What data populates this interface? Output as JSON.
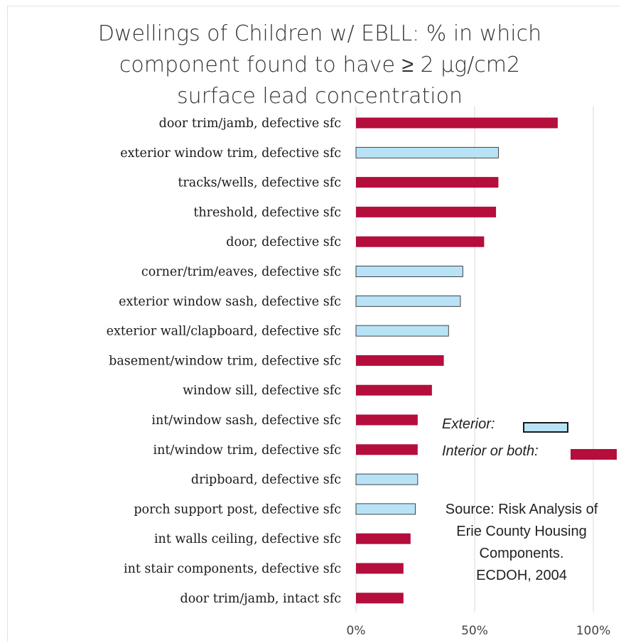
{
  "chart_data": {
    "type": "bar",
    "orientation": "horizontal",
    "title": "Dwellings of Children w/ EBLL: % in which component found to have ≥ 2 µg/cm2 surface lead concentration",
    "categories": [
      "door trim/jamb, defective sfc",
      "exterior window trim, defective sfc",
      "tracks/wells, defective sfc",
      "threshold, defective sfc",
      "door, defective sfc",
      "corner/trim/eaves, defective sfc",
      "exterior window sash, defective sfc",
      "exterior wall/clapboard, defective sfc",
      "basement/window trim, defective sfc",
      "window sill, defective sfc",
      "int/window sash, defective sfc",
      "int/window trim, defective sfc",
      "dripboard, defective sfc",
      "porch support post, defective sfc",
      "int walls ceiling, defective sfc",
      "int stair components, defective sfc",
      "door trim/jamb, intact sfc"
    ],
    "values": [
      85,
      60,
      60,
      59,
      54,
      45,
      44,
      39,
      37,
      32,
      26,
      26,
      26,
      25,
      23,
      20,
      20
    ],
    "location": [
      "interior",
      "exterior",
      "interior",
      "interior",
      "interior",
      "exterior",
      "exterior",
      "exterior",
      "interior",
      "interior",
      "interior",
      "interior",
      "exterior",
      "exterior",
      "interior",
      "interior",
      "interior"
    ],
    "xticks": [
      0,
      50,
      100
    ],
    "xtick_labels": [
      "0%",
      "50%",
      "100%"
    ],
    "xlim": [
      0,
      110
    ],
    "grid": "vertical",
    "xlabel": "",
    "ylabel": "",
    "legend": {
      "placement": "right",
      "entries": [
        {
          "label": "Exterior:",
          "key": "exterior"
        },
        {
          "label": "Interior or both:",
          "key": "interior"
        }
      ]
    },
    "annotation": "Source: Risk Analysis of Erie County Housing Components. ECDOH, 2004"
  },
  "annotation_lines": [
    "Source: Risk Analysis of",
    "Erie County  Housing",
    "Components.",
    "ECDOH, 2004"
  ],
  "title_lines": [
    "Dwellings of Children w/ EBLL: % in which",
    "component found to have  ≥ 2 µg/cm2",
    "surface lead concentration"
  ],
  "colors": {
    "interior": "#b50d3c",
    "exterior": "#b8e3f7",
    "exterior_border": "#1a1a1a",
    "grid": "#d9d9d9"
  }
}
